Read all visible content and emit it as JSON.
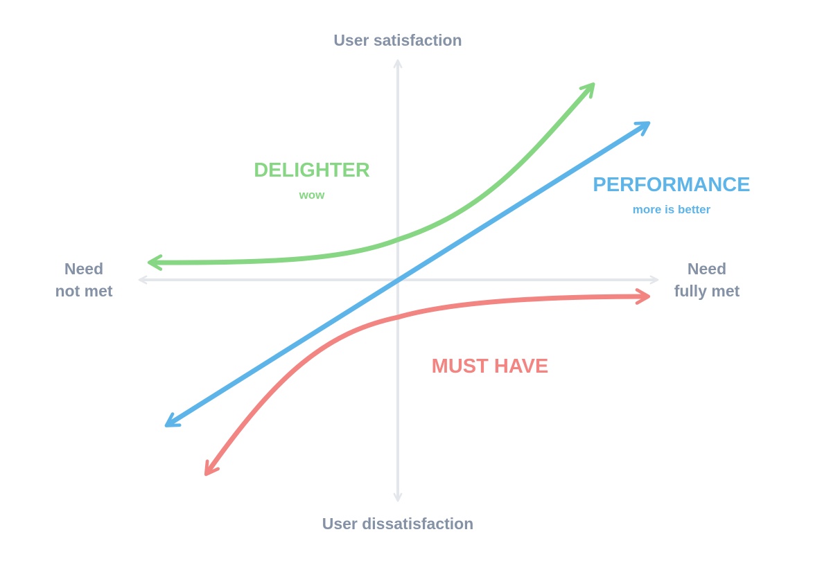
{
  "colors": {
    "axis": "#e3e6ea",
    "axis_text": "#8592a6",
    "delighter": "#86d684",
    "performance": "#5db4e8",
    "must_have": "#f28482"
  },
  "axes": {
    "top_label": "User satisfaction",
    "bottom_label": "User dissatisfaction",
    "left_label_line1": "Need",
    "left_label_line2": "not met",
    "right_label_line1": "Need",
    "right_label_line2": "fully met"
  },
  "categories": {
    "delighter": {
      "title": "DELIGHTER",
      "subtitle": "wow"
    },
    "performance": {
      "title": "PERFORMANCE",
      "subtitle": "more is better"
    },
    "must_have": {
      "title": "MUST HAVE"
    }
  }
}
